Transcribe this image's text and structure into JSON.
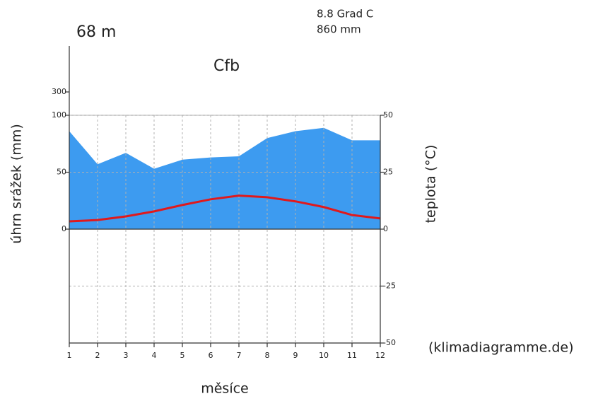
{
  "chart_data": {
    "type": "climate",
    "elevation": "68 m",
    "mean_temperature": "8.8 Grad C",
    "annual_precipitation": "860 mm",
    "title": "Cfb",
    "ylabel": "úhrn srážek (mm)",
    "y2label": "teplota (°C)",
    "xlabel": "měsíce",
    "source": "(klimadiagramme.de)",
    "x": [
      1,
      2,
      3,
      4,
      5,
      6,
      7,
      8,
      9,
      10,
      11,
      12
    ],
    "xlim": [
      1,
      12
    ],
    "xticks": [
      1,
      2,
      3,
      4,
      5,
      6,
      7,
      8,
      9,
      10,
      11,
      12
    ],
    "ylim": [
      -100,
      300
    ],
    "yticks": [
      0,
      50,
      100,
      300
    ],
    "y2lim": [
      -50,
      50
    ],
    "y2ticks": [
      50,
      25,
      0,
      -25,
      -50
    ],
    "grid": true,
    "series": [
      {
        "name": "srážky",
        "color": "#3d9bf0",
        "kind": "area",
        "values": [
          86,
          57,
          67,
          53,
          61,
          63,
          64,
          80,
          86,
          89,
          78,
          78
        ]
      },
      {
        "name": "teplota",
        "color": "#e0191c",
        "kind": "line",
        "axis": "y2",
        "values": [
          3.4,
          4,
          5.6,
          7.8,
          10.6,
          13.1,
          14.7,
          14,
          12.2,
          9.7,
          6.2,
          4.7
        ]
      }
    ]
  }
}
